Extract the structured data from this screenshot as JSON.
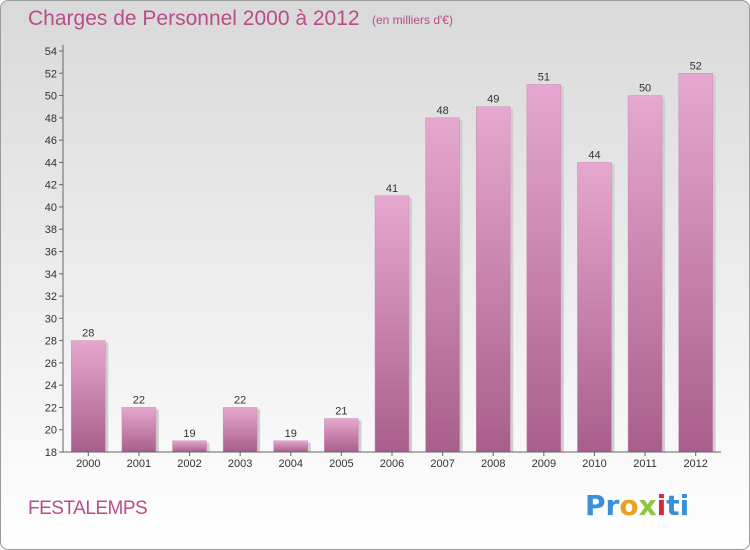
{
  "chart_data": {
    "type": "bar",
    "title": "Charges de Personnel 2000 à 2012",
    "subtitle": "(en milliers d'€)",
    "categories": [
      "2000",
      "2001",
      "2002",
      "2003",
      "2004",
      "2005",
      "2006",
      "2007",
      "2008",
      "2009",
      "2010",
      "2011",
      "2012"
    ],
    "values": [
      28,
      22,
      19,
      22,
      19,
      21,
      41,
      48,
      49,
      51,
      44,
      50,
      52
    ],
    "ylim": [
      18,
      54
    ],
    "yticks": [
      18,
      20,
      22,
      24,
      26,
      28,
      30,
      32,
      34,
      36,
      38,
      40,
      42,
      44,
      46,
      48,
      50,
      52,
      54
    ],
    "xlabel": "",
    "ylabel": "",
    "grid": false
  },
  "footer": {
    "commune": "FESTALEMPS",
    "logo": {
      "p1": "Pr",
      "p2": "o",
      "p3": "x",
      "p4": "i",
      "p5": "ti"
    }
  },
  "colors": {
    "title": "#b84d8a",
    "bar_light": "#e6a8cf",
    "bar_dark": "#a85e8c"
  }
}
